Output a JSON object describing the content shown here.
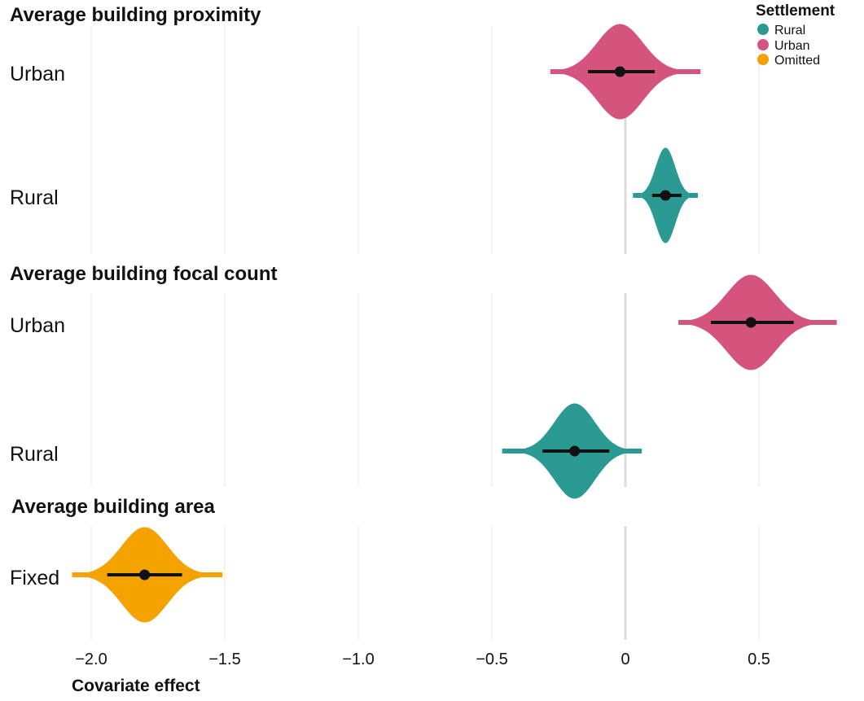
{
  "chart_data": {
    "type": "violin",
    "xlabel": "Covariate effect",
    "xlim": [
      -2.05,
      0.82
    ],
    "xticks": [
      -2.0,
      -1.5,
      -1.0,
      -0.5,
      0,
      0.5
    ],
    "xtick_labels": [
      "−2.0",
      "−1.5",
      "−1.0",
      "−0.5",
      "0",
      "0.5"
    ],
    "grid": true,
    "legend": {
      "title": "Settlement",
      "position": "top-right",
      "entries": [
        {
          "label": "Rural",
          "color": "#2a9a93"
        },
        {
          "label": "Urban",
          "color": "#d4547e"
        },
        {
          "label": "Omitted",
          "color": "#f3a200"
        }
      ]
    },
    "panels": [
      {
        "title": "Average building proximity",
        "rows": [
          {
            "label": "Urban",
            "settlement": "Urban",
            "median": -0.02,
            "ci": [
              -0.14,
              0.11
            ],
            "range": [
              -0.28,
              0.28
            ],
            "sd": 0.085
          },
          {
            "label": "Rural",
            "settlement": "Rural",
            "median": 0.15,
            "ci": [
              0.1,
              0.21
            ],
            "range": [
              0.03,
              0.27
            ],
            "sd": 0.035
          }
        ]
      },
      {
        "title": "Average building focal count",
        "rows": [
          {
            "label": "Urban",
            "settlement": "Urban",
            "median": 0.47,
            "ci": [
              0.32,
              0.63
            ],
            "range": [
              0.2,
              0.79
            ],
            "sd": 0.09
          },
          {
            "label": "Rural",
            "settlement": "Rural",
            "median": -0.19,
            "ci": [
              -0.31,
              -0.06
            ],
            "range": [
              -0.46,
              0.06
            ],
            "sd": 0.075
          }
        ]
      },
      {
        "title": "Average building area",
        "rows": [
          {
            "label": "Fixed",
            "settlement": "Omitted",
            "median": -1.8,
            "ci": [
              -1.94,
              -1.66
            ],
            "range": [
              -2.07,
              -1.51
            ],
            "sd": 0.085
          }
        ]
      }
    ]
  }
}
